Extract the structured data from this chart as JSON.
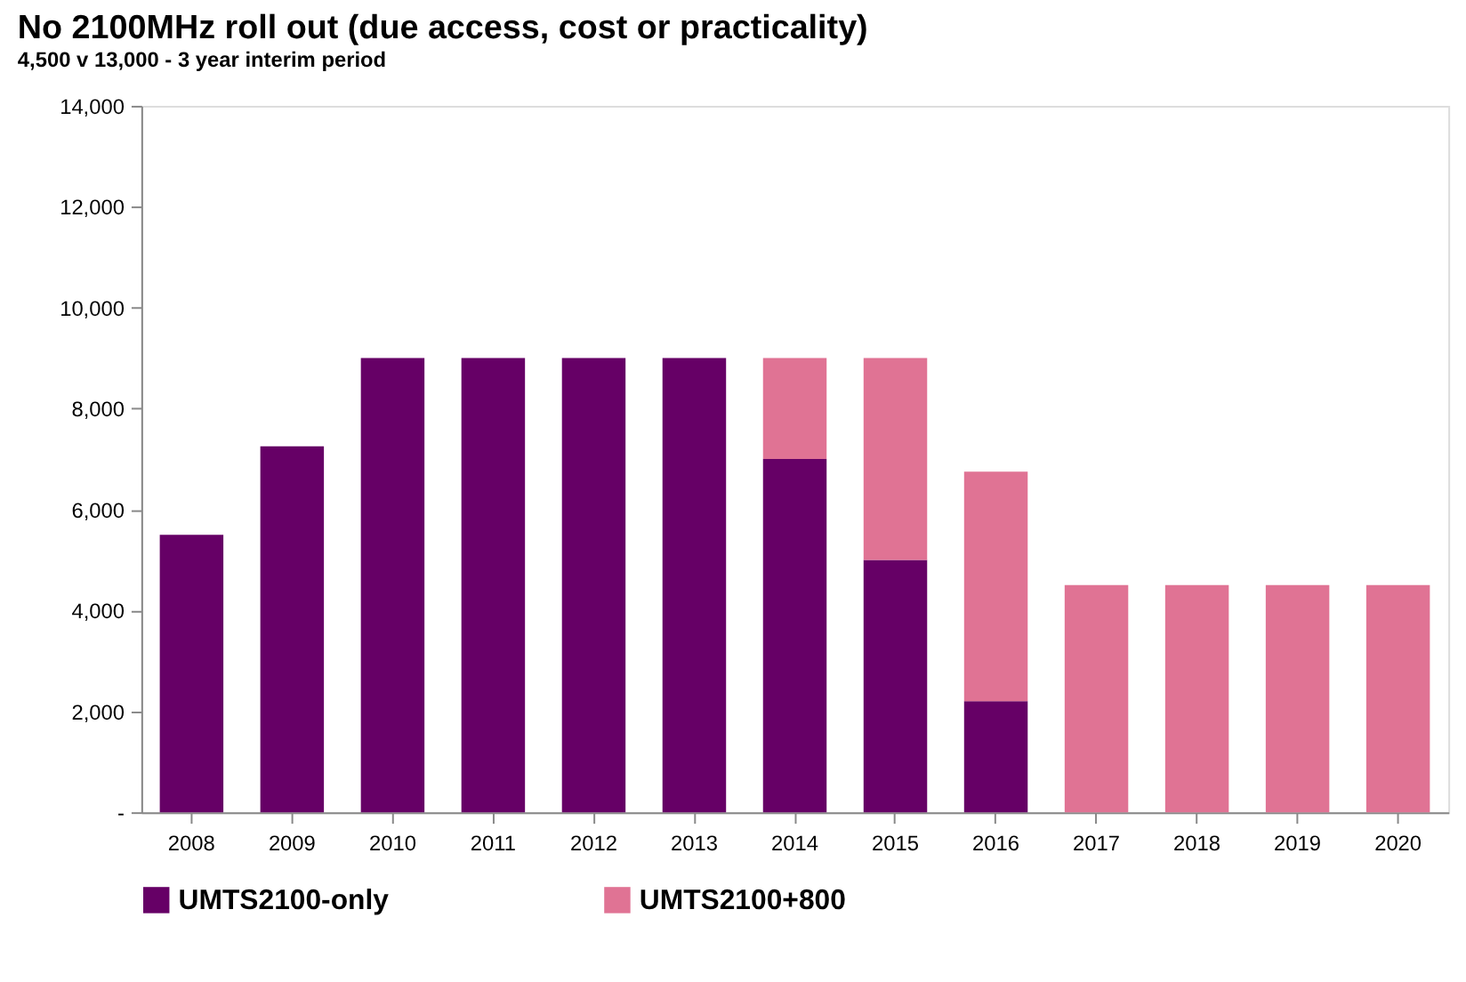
{
  "chart_data": {
    "type": "bar",
    "title": "No 2100MHz roll out (due access, cost or practicality)",
    "subtitle": "4,500 v 13,000 - 3 year interim period",
    "stacked": true,
    "categories": [
      "2008",
      "2009",
      "2010",
      "2011",
      "2012",
      "2013",
      "2014",
      "2015",
      "2016",
      "2017",
      "2018",
      "2019",
      "2020"
    ],
    "series": [
      {
        "name": "UMTS2100-only",
        "color": "#660066",
        "values": [
          5500,
          7250,
          9000,
          9000,
          9000,
          9000,
          7000,
          5000,
          2200,
          0,
          0,
          0,
          0
        ]
      },
      {
        "name": "UMTS2100+800",
        "color": "#e07394",
        "values": [
          0,
          0,
          0,
          0,
          0,
          0,
          2000,
          4000,
          4550,
          4500,
          4500,
          4500,
          4500
        ]
      }
    ],
    "ylim": [
      0,
      14000
    ],
    "yticks": [
      {
        "value": 0,
        "label": "-"
      },
      {
        "value": 2000,
        "label": "2,000"
      },
      {
        "value": 4000,
        "label": "4,000"
      },
      {
        "value": 6000,
        "label": "6,000"
      },
      {
        "value": 8000,
        "label": "8,000"
      },
      {
        "value": 10000,
        "label": "10,000"
      },
      {
        "value": 12000,
        "label": "12,000"
      },
      {
        "value": 14000,
        "label": "14,000"
      }
    ],
    "grid": false,
    "legend": "bottom"
  }
}
